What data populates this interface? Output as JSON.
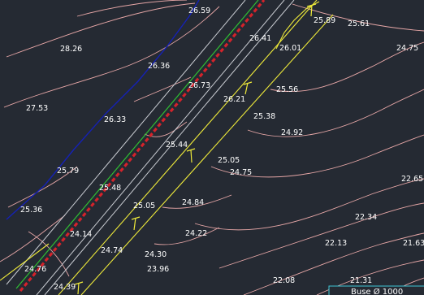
{
  "colors": {
    "background": "#252a33",
    "contour": "#e7a7a7",
    "road_edge": "#c9ccd2",
    "center_red": "#d4232b",
    "center_green": "#2fbf33",
    "blue_line": "#1521b5",
    "yellow": "#eeea3a",
    "tag_border": "#3fc6d6"
  },
  "elevations": [
    "26.59",
    "25.89",
    "25.61",
    "26.41",
    "26.01",
    "24.75",
    "28.26",
    "26.36",
    "26.73",
    "25.56",
    "26.21",
    "27.53",
    "26.33",
    "25.38",
    "24.92",
    "25.44",
    "25.05",
    "24.75",
    "25.79",
    "22.65",
    "25.48",
    "25.36",
    "25.05",
    "24.84",
    "22.34",
    "24.14",
    "24.22",
    "22.13",
    "21.63",
    "24.74",
    "24.30",
    "23.96",
    "24.76",
    "22.08",
    "21.31",
    "24.39"
  ],
  "pipe_tag": {
    "label": "Buse Ø 1000"
  }
}
